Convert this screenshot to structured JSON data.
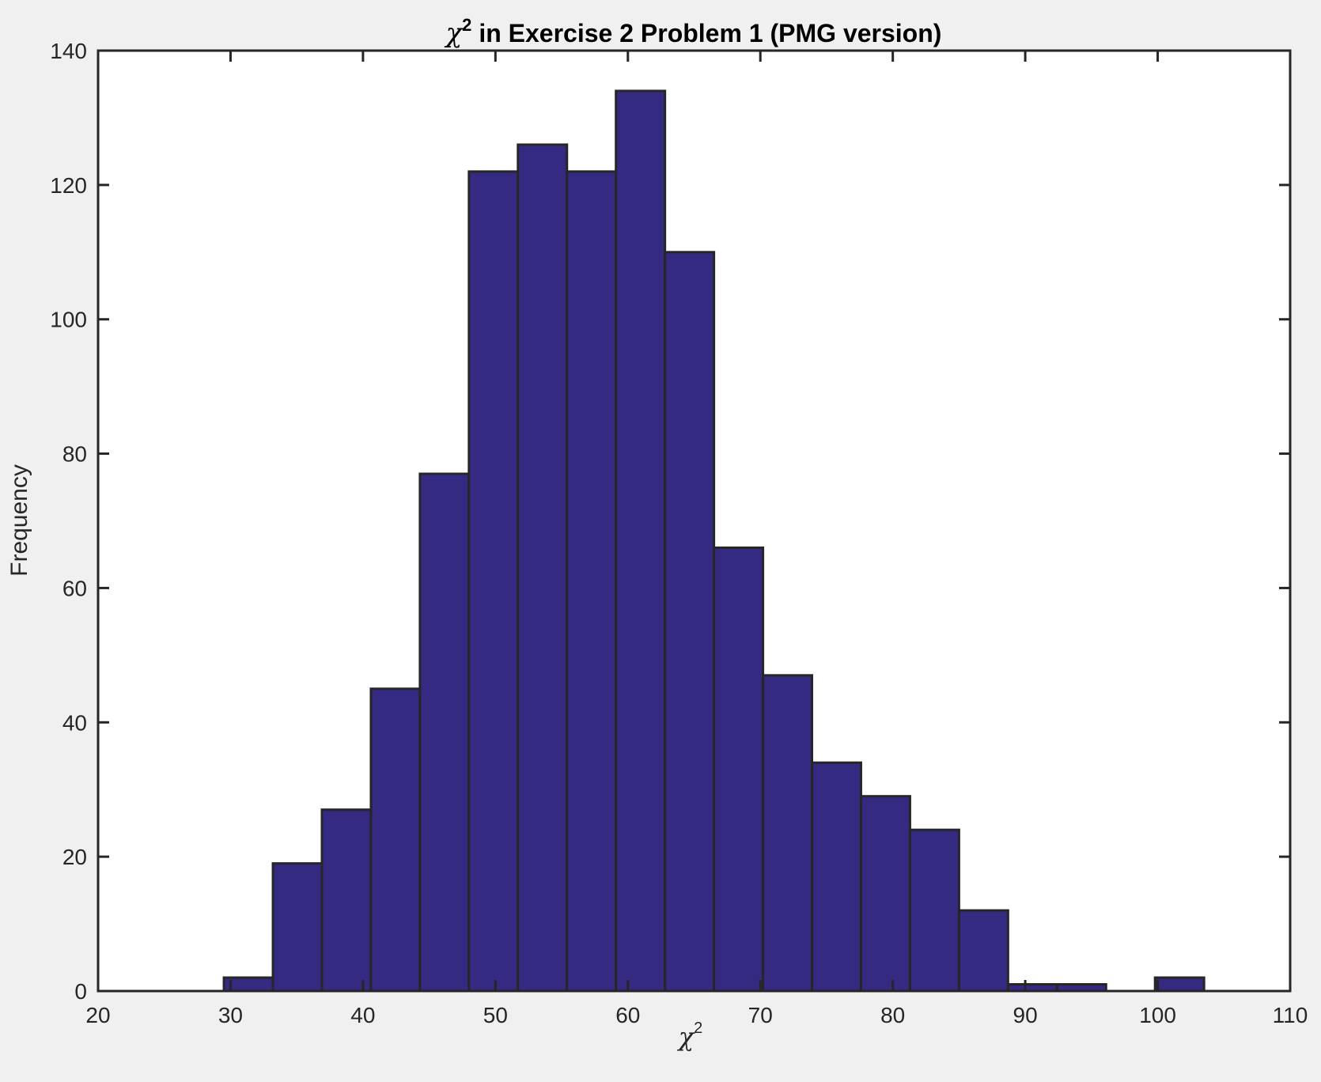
{
  "chart_data": {
    "type": "bar",
    "title_symbol": "χ",
    "title_sup": "2",
    "title_rest": " in Exercise 2 Problem 1 (PMG version)",
    "xlabel_symbol": "χ",
    "xlabel_sup": "2",
    "ylabel": "Frequency",
    "xlim": [
      20,
      110
    ],
    "ylim": [
      0,
      140
    ],
    "xticks": [
      20,
      30,
      40,
      50,
      60,
      70,
      80,
      90,
      100,
      110
    ],
    "yticks": [
      0,
      20,
      40,
      60,
      80,
      100,
      120,
      140
    ],
    "bin_width": 3.7,
    "bins": [
      {
        "x0": 29.5,
        "count": 2
      },
      {
        "x0": 33.2,
        "count": 19
      },
      {
        "x0": 36.9,
        "count": 27
      },
      {
        "x0": 40.6,
        "count": 45
      },
      {
        "x0": 44.3,
        "count": 77
      },
      {
        "x0": 48.0,
        "count": 122
      },
      {
        "x0": 51.7,
        "count": 126
      },
      {
        "x0": 55.4,
        "count": 122
      },
      {
        "x0": 59.1,
        "count": 134
      },
      {
        "x0": 62.8,
        "count": 110
      },
      {
        "x0": 66.5,
        "count": 66
      },
      {
        "x0": 70.2,
        "count": 47
      },
      {
        "x0": 73.9,
        "count": 34
      },
      {
        "x0": 77.6,
        "count": 29
      },
      {
        "x0": 81.3,
        "count": 24
      },
      {
        "x0": 85.0,
        "count": 12
      },
      {
        "x0": 88.7,
        "count": 1
      },
      {
        "x0": 92.4,
        "count": 1
      },
      {
        "x0": 96.1,
        "count": 0
      },
      {
        "x0": 99.8,
        "count": 2
      }
    ],
    "bar_color": "#352a82",
    "edge_color": "#262626",
    "grid": false,
    "legend": "none"
  }
}
